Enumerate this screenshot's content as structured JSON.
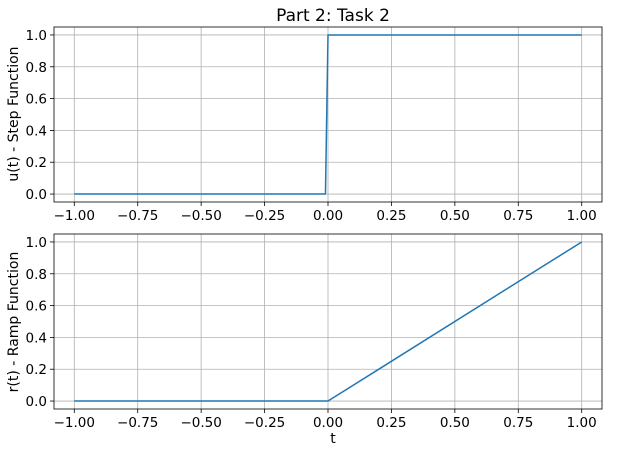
{
  "chart_data": [
    {
      "type": "line",
      "title": "Part 2: Task 2",
      "xlabel": "",
      "ylabel": "u(t) - Step Function",
      "xlim": [
        -1.08,
        1.08
      ],
      "ylim": [
        -0.05,
        1.05
      ],
      "xticks": [
        -1.0,
        -0.75,
        -0.5,
        -0.25,
        0.0,
        0.25,
        0.5,
        0.75,
        1.0
      ],
      "xtick_labels": [
        "−1.00",
        "−0.75",
        "−0.50",
        "−0.25",
        "0.00",
        "0.25",
        "0.50",
        "0.75",
        "1.00"
      ],
      "yticks": [
        0.0,
        0.2,
        0.4,
        0.6,
        0.8,
        1.0
      ],
      "ytick_labels": [
        "0.0",
        "0.2",
        "0.4",
        "0.6",
        "0.8",
        "1.0"
      ],
      "grid": true,
      "series": [
        {
          "color": "#1f77b4",
          "x": [
            -1.0,
            -0.01,
            0.0,
            1.0
          ],
          "y": [
            0.0,
            0.0,
            1.0,
            1.0
          ]
        }
      ]
    },
    {
      "type": "line",
      "title": "",
      "xlabel": "t",
      "ylabel": "r(t) - Ramp Function",
      "xlim": [
        -1.08,
        1.08
      ],
      "ylim": [
        -0.05,
        1.05
      ],
      "xticks": [
        -1.0,
        -0.75,
        -0.5,
        -0.25,
        0.0,
        0.25,
        0.5,
        0.75,
        1.0
      ],
      "xtick_labels": [
        "−1.00",
        "−0.75",
        "−0.50",
        "−0.25",
        "0.00",
        "0.25",
        "0.50",
        "0.75",
        "1.00"
      ],
      "yticks": [
        0.0,
        0.2,
        0.4,
        0.6,
        0.8,
        1.0
      ],
      "ytick_labels": [
        "0.0",
        "0.2",
        "0.4",
        "0.6",
        "0.8",
        "1.0"
      ],
      "grid": true,
      "series": [
        {
          "color": "#1f77b4",
          "x": [
            -1.0,
            0.0,
            1.0
          ],
          "y": [
            0.0,
            0.0,
            1.0
          ]
        }
      ]
    }
  ]
}
